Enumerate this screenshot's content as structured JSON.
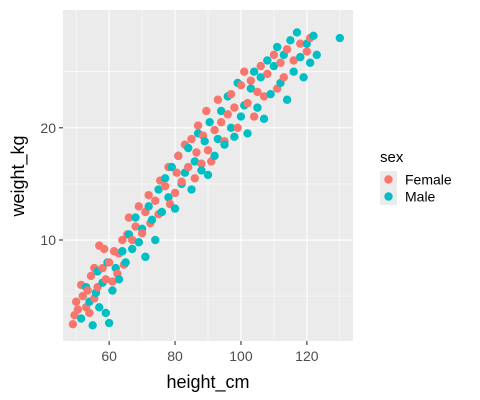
{
  "chart_data": {
    "type": "scatter",
    "xlabel": "height_cm",
    "ylabel": "weight_kg",
    "xlim": [
      46.0,
      134.0
    ],
    "ylim": [
      1.0,
      30.5
    ],
    "xticks": [
      60,
      80,
      100,
      120
    ],
    "yticks": [
      10,
      20
    ],
    "grid": true,
    "legend": {
      "title": "sex",
      "position": "right"
    },
    "series": [
      {
        "name": "Female",
        "color": "#F8766D",
        "points": [
          [
            49.0,
            2.5
          ],
          [
            49.5,
            3.3
          ],
          [
            50.0,
            4.5
          ],
          [
            50.5,
            3.8
          ],
          [
            51.5,
            6.0
          ],
          [
            52.0,
            5.0
          ],
          [
            53.0,
            4.0
          ],
          [
            53.5,
            5.5
          ],
          [
            54.0,
            3.5
          ],
          [
            54.5,
            6.8
          ],
          [
            55.5,
            4.8
          ],
          [
            55.5,
            7.5
          ],
          [
            56.5,
            5.8
          ],
          [
            57.0,
            9.5
          ],
          [
            58.0,
            7.5
          ],
          [
            58.5,
            9.2
          ],
          [
            59.0,
            6.5
          ],
          [
            60.0,
            8.0
          ],
          [
            61.0,
            6.3
          ],
          [
            61.5,
            9.0
          ],
          [
            62.5,
            7.0
          ],
          [
            63.0,
            8.8
          ],
          [
            64.0,
            10.0
          ],
          [
            64.5,
            7.8
          ],
          [
            65.5,
            10.5
          ],
          [
            66.0,
            12.0
          ],
          [
            67.0,
            10.0
          ],
          [
            68.0,
            11.2
          ],
          [
            69.0,
            13.0
          ],
          [
            70.0,
            10.6
          ],
          [
            71.0,
            12.5
          ],
          [
            72.0,
            14.0
          ],
          [
            72.5,
            11.5
          ],
          [
            74.0,
            13.5
          ],
          [
            75.0,
            12.3
          ],
          [
            75.5,
            15.3
          ],
          [
            77.0,
            14.8
          ],
          [
            78.0,
            16.5
          ],
          [
            78.5,
            13.2
          ],
          [
            80.0,
            14.2
          ],
          [
            80.5,
            16.0
          ],
          [
            81.0,
            17.5
          ],
          [
            82.0,
            15.2
          ],
          [
            83.0,
            18.5
          ],
          [
            84.0,
            16.5
          ],
          [
            85.0,
            19.0
          ],
          [
            86.0,
            15.5
          ],
          [
            86.5,
            17.8
          ],
          [
            87.0,
            20.2
          ],
          [
            88.0,
            16.8
          ],
          [
            88.5,
            19.3
          ],
          [
            89.5,
            21.5
          ],
          [
            90.0,
            18.0
          ],
          [
            91.0,
            17.0
          ],
          [
            92.0,
            19.8
          ],
          [
            93.0,
            22.5
          ],
          [
            94.0,
            20.5
          ],
          [
            95.0,
            18.8
          ],
          [
            96.0,
            21.2
          ],
          [
            97.0,
            23.0
          ],
          [
            98.0,
            21.8
          ],
          [
            99.0,
            20.0
          ],
          [
            100.0,
            23.8
          ],
          [
            101.0,
            25.0
          ],
          [
            102.0,
            22.2
          ],
          [
            103.0,
            24.2
          ],
          [
            104.0,
            21.0
          ],
          [
            105.0,
            23.2
          ],
          [
            106.0,
            25.5
          ],
          [
            107.0,
            22.8
          ],
          [
            108.0,
            24.8
          ],
          [
            110.0,
            26.5
          ],
          [
            111.0,
            23.5
          ],
          [
            112.0,
            25.8
          ],
          [
            113.0,
            24.5
          ],
          [
            114.0,
            27.0
          ],
          [
            116.0,
            26.0
          ],
          [
            118.0,
            27.5
          ],
          [
            120.0,
            26.8
          ],
          [
            121.0,
            28.0
          ]
        ]
      },
      {
        "name": "Male",
        "color": "#00BFC4",
        "points": [
          [
            51.5,
            3.0
          ],
          [
            53.0,
            5.8
          ],
          [
            54.0,
            4.5
          ],
          [
            55.0,
            2.4
          ],
          [
            56.0,
            5.3
          ],
          [
            56.5,
            7.2
          ],
          [
            57.0,
            4.0
          ],
          [
            58.0,
            6.2
          ],
          [
            59.0,
            3.5
          ],
          [
            59.5,
            8.0
          ],
          [
            60.0,
            2.6
          ],
          [
            61.0,
            5.5
          ],
          [
            62.0,
            7.5
          ],
          [
            63.0,
            6.5
          ],
          [
            64.0,
            9.0
          ],
          [
            65.0,
            8.0
          ],
          [
            66.0,
            10.5
          ],
          [
            67.0,
            9.2
          ],
          [
            68.0,
            12.0
          ],
          [
            69.0,
            9.8
          ],
          [
            70.0,
            11.0
          ],
          [
            71.0,
            8.5
          ],
          [
            72.0,
            13.0
          ],
          [
            73.0,
            11.8
          ],
          [
            74.0,
            10.0
          ],
          [
            75.0,
            14.5
          ],
          [
            76.0,
            12.5
          ],
          [
            77.0,
            15.5
          ],
          [
            78.0,
            13.8
          ],
          [
            79.0,
            16.5
          ],
          [
            80.0,
            12.8
          ],
          [
            81.0,
            17.5
          ],
          [
            82.0,
            15.0
          ],
          [
            83.0,
            16.0
          ],
          [
            84.0,
            18.2
          ],
          [
            85.0,
            14.5
          ],
          [
            86.0,
            17.0
          ],
          [
            87.0,
            19.5
          ],
          [
            88.0,
            16.2
          ],
          [
            89.0,
            18.8
          ],
          [
            90.0,
            15.8
          ],
          [
            90.5,
            20.5
          ],
          [
            92.0,
            17.5
          ],
          [
            93.0,
            19.0
          ],
          [
            94.0,
            21.5
          ],
          [
            95.0,
            18.5
          ],
          [
            96.0,
            22.8
          ],
          [
            97.0,
            20.0
          ],
          [
            98.0,
            19.2
          ],
          [
            99.0,
            24.0
          ],
          [
            100.0,
            21.0
          ],
          [
            101.0,
            22.0
          ],
          [
            102.0,
            19.5
          ],
          [
            103.0,
            23.5
          ],
          [
            104.0,
            25.0
          ],
          [
            105.0,
            21.8
          ],
          [
            106.0,
            24.5
          ],
          [
            107.0,
            20.8
          ],
          [
            108.0,
            26.0
          ],
          [
            109.0,
            23.0
          ],
          [
            110.0,
            25.5
          ],
          [
            111.0,
            27.2
          ],
          [
            112.0,
            24.0
          ],
          [
            113.0,
            26.5
          ],
          [
            114.0,
            22.5
          ],
          [
            115.0,
            27.8
          ],
          [
            116.0,
            25.0
          ],
          [
            117.0,
            28.5
          ],
          [
            118.0,
            26.3
          ],
          [
            119.0,
            24.5
          ],
          [
            120.0,
            27.5
          ],
          [
            121.0,
            25.8
          ],
          [
            122.0,
            28.2
          ],
          [
            123.0,
            26.5
          ],
          [
            130.0,
            28.0
          ]
        ]
      }
    ]
  }
}
